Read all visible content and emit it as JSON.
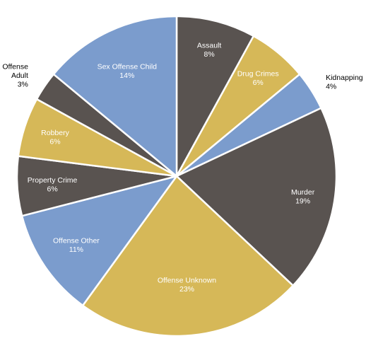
{
  "chart_data": {
    "type": "pie",
    "title": "",
    "start_angle_deg": 0,
    "direction": "clockwise",
    "legend": "none",
    "slices": [
      {
        "label": "Assault",
        "percent_label": "8%",
        "value": 8,
        "color": "#595350",
        "label_color": "#ffffff",
        "label_position": "inside"
      },
      {
        "label": "Drug Crimes",
        "percent_label": "6%",
        "value": 6,
        "color": "#d6b858",
        "label_color": "#ffffff",
        "label_position": "inside"
      },
      {
        "label": "Kidnapping",
        "percent_label": "4%",
        "value": 4,
        "color": "#7b9ccd",
        "label_color": "#000000",
        "label_position": "outside"
      },
      {
        "label": "Murder",
        "percent_label": "19%",
        "value": 19,
        "color": "#595350",
        "label_color": "#ffffff",
        "label_position": "inside"
      },
      {
        "label": "Offense Unknown",
        "percent_label": "23%",
        "value": 23,
        "color": "#d6b858",
        "label_color": "#ffffff",
        "label_position": "inside"
      },
      {
        "label": "Offense Other",
        "percent_label": "11%",
        "value": 11,
        "color": "#7b9ccd",
        "label_color": "#ffffff",
        "label_position": "inside"
      },
      {
        "label": "Property Crime",
        "percent_label": "6%",
        "value": 6,
        "color": "#595350",
        "label_color": "#ffffff",
        "label_position": "inside"
      },
      {
        "label": "Robbery",
        "percent_label": "6%",
        "value": 6,
        "color": "#d6b858",
        "label_color": "#ffffff",
        "label_position": "inside"
      },
      {
        "label": "Sex Offense Adult",
        "percent_label": "3%",
        "value": 3,
        "color": "#595350",
        "label_color": "#000000",
        "label_position": "outside"
      },
      {
        "label": "Sex Offense Child",
        "percent_label": "14%",
        "value": 14,
        "color": "#7b9ccd",
        "label_color": "#ffffff",
        "label_position": "inside"
      }
    ]
  }
}
